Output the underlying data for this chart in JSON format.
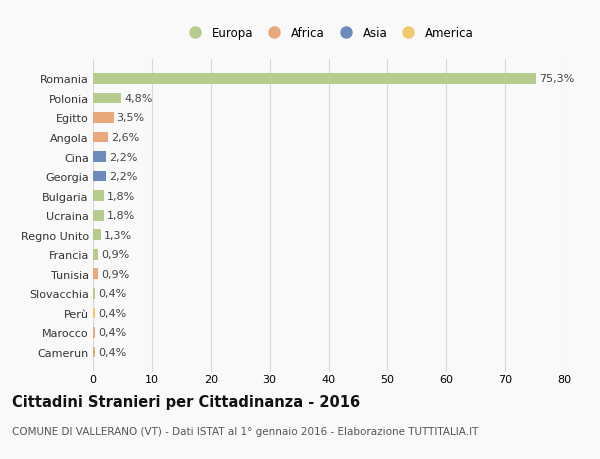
{
  "countries": [
    "Camerun",
    "Marocco",
    "Perù",
    "Slovacchia",
    "Tunisia",
    "Francia",
    "Regno Unito",
    "Ucraina",
    "Bulgaria",
    "Georgia",
    "Cina",
    "Angola",
    "Egitto",
    "Polonia",
    "Romania"
  ],
  "values": [
    0.4,
    0.4,
    0.4,
    0.4,
    0.9,
    0.9,
    1.3,
    1.8,
    1.8,
    2.2,
    2.2,
    2.6,
    3.5,
    4.8,
    75.3
  ],
  "labels": [
    "0,4%",
    "0,4%",
    "0,4%",
    "0,4%",
    "0,9%",
    "0,9%",
    "1,3%",
    "1,8%",
    "1,8%",
    "2,2%",
    "2,2%",
    "2,6%",
    "3,5%",
    "4,8%",
    "75,3%"
  ],
  "continents": [
    "Africa",
    "Africa",
    "America",
    "Europa",
    "Africa",
    "Europa",
    "Europa",
    "Europa",
    "Europa",
    "Asia",
    "Asia",
    "Africa",
    "Africa",
    "Europa",
    "Europa"
  ],
  "continent_colors": {
    "Europa": "#b5cc8e",
    "Africa": "#e8a87c",
    "Asia": "#6b8cba",
    "America": "#f0c96e"
  },
  "legend_order": [
    "Europa",
    "Africa",
    "Asia",
    "America"
  ],
  "xlim": [
    0,
    80
  ],
  "xticks": [
    0,
    10,
    20,
    30,
    40,
    50,
    60,
    70,
    80
  ],
  "title": "Cittadini Stranieri per Cittadinanza - 2016",
  "subtitle": "COMUNE DI VALLERANO (VT) - Dati ISTAT al 1° gennaio 2016 - Elaborazione TUTTITALIA.IT",
  "bg_color": "#f9f9f9",
  "grid_color": "#d8d8d8",
  "bar_height": 0.55,
  "label_fontsize": 8,
  "title_fontsize": 10.5,
  "subtitle_fontsize": 7.5
}
